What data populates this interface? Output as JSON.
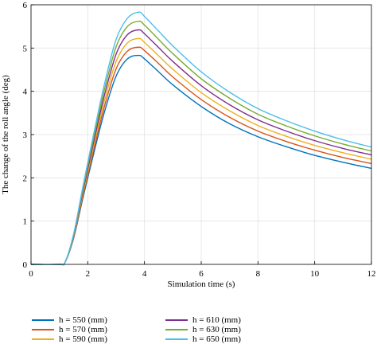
{
  "chart_data": {
    "type": "line",
    "title": "",
    "xlabel": "Simulation time (s)",
    "ylabel": "The change of the roll angle (deg)",
    "xlim": [
      0,
      12
    ],
    "ylim": [
      0,
      6
    ],
    "xticks": [
      0,
      2,
      4,
      6,
      8,
      10,
      12
    ],
    "yticks": [
      0,
      1,
      2,
      3,
      4,
      5,
      6
    ],
    "grid": true,
    "legend_position": "bottom",
    "x": [
      0,
      1,
      1.2,
      1.5,
      1.8,
      2.0,
      2.3,
      2.6,
      3.0,
      3.4,
      3.8,
      4.0,
      4.5,
      5,
      6,
      7,
      8,
      9,
      10,
      11,
      12
    ],
    "series": [
      {
        "name": "h = 550 (mm)",
        "color": "#0072BD",
        "values": [
          0,
          0,
          0.05,
          0.6,
          1.45,
          2.0,
          2.8,
          3.55,
          4.35,
          4.75,
          4.83,
          4.75,
          4.45,
          4.15,
          3.65,
          3.25,
          2.95,
          2.72,
          2.52,
          2.36,
          2.22
        ]
      },
      {
        "name": "h = 570 (mm)",
        "color": "#D95319",
        "values": [
          0,
          0,
          0.05,
          0.62,
          1.5,
          2.07,
          2.9,
          3.68,
          4.52,
          4.93,
          5.02,
          4.94,
          4.64,
          4.33,
          3.81,
          3.4,
          3.08,
          2.84,
          2.64,
          2.47,
          2.33
        ]
      },
      {
        "name": "h = 590 (mm)",
        "color": "#EDB120",
        "values": [
          0,
          0,
          0.05,
          0.64,
          1.55,
          2.14,
          3.0,
          3.81,
          4.69,
          5.12,
          5.22,
          5.13,
          4.82,
          4.51,
          3.97,
          3.55,
          3.21,
          2.96,
          2.75,
          2.58,
          2.43
        ]
      },
      {
        "name": "h = 610 (mm)",
        "color": "#7E2F8E",
        "values": [
          0,
          0,
          0.05,
          0.66,
          1.6,
          2.21,
          3.1,
          3.94,
          4.86,
          5.31,
          5.42,
          5.33,
          5.01,
          4.69,
          4.13,
          3.69,
          3.34,
          3.08,
          2.86,
          2.68,
          2.53
        ]
      },
      {
        "name": "h = 630 (mm)",
        "color": "#77AC30",
        "values": [
          0,
          0,
          0.05,
          0.68,
          1.65,
          2.28,
          3.2,
          4.07,
          5.03,
          5.5,
          5.62,
          5.53,
          5.2,
          4.87,
          4.29,
          3.84,
          3.47,
          3.2,
          2.97,
          2.78,
          2.62
        ]
      },
      {
        "name": "h = 650 (mm)",
        "color": "#4DBEEE",
        "values": [
          0,
          0,
          0.05,
          0.7,
          1.7,
          2.35,
          3.3,
          4.2,
          5.2,
          5.69,
          5.83,
          5.73,
          5.39,
          5.05,
          4.45,
          3.98,
          3.6,
          3.32,
          3.08,
          2.88,
          2.71
        ]
      }
    ]
  }
}
